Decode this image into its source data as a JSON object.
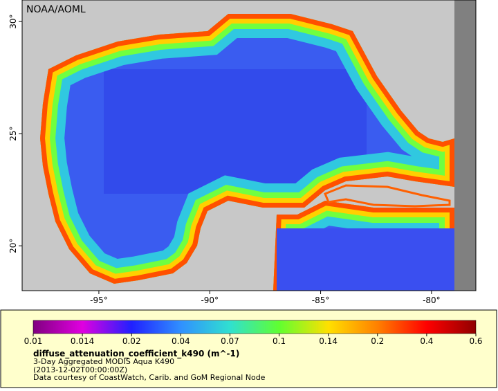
{
  "map": {
    "credit": "NOAA/AOML",
    "xlim": [
      -98.46,
      -78.0
    ],
    "ylim": [
      18.0,
      30.96
    ],
    "xticks": [
      {
        "value": -95,
        "label": "-95°"
      },
      {
        "value": -90,
        "label": "-90°"
      },
      {
        "value": -85,
        "label": "-85°"
      },
      {
        "value": -80,
        "label": "-80°"
      }
    ],
    "yticks": [
      {
        "value": 20,
        "label": "20°"
      },
      {
        "value": 25,
        "label": "25°"
      },
      {
        "value": 30,
        "label": "30°"
      }
    ]
  },
  "legend": {
    "colorbar": {
      "ticks": [
        {
          "value": 0.01,
          "label": "0.01"
        },
        {
          "value": 0.014,
          "label": "0.014"
        },
        {
          "value": 0.02,
          "label": "0.02"
        },
        {
          "value": 0.04,
          "label": "0.04"
        },
        {
          "value": 0.07,
          "label": "0.07"
        },
        {
          "value": 0.1,
          "label": "0.1"
        },
        {
          "value": 0.14,
          "label": "0.14"
        },
        {
          "value": 0.2,
          "label": "0.2"
        },
        {
          "value": 0.4,
          "label": "0.4"
        },
        {
          "value": 0.6,
          "label": "0.6"
        }
      ],
      "colors": [
        "#800080",
        "#e000e0",
        "#2020ff",
        "#3090ff",
        "#30e0d0",
        "#60ff30",
        "#ffe000",
        "#ff8000",
        "#ff0000",
        "#900000"
      ]
    },
    "variable": "diffuse_attenuation_coefficient_k490 (m^-1)",
    "description": "3-Day Aggregated MODIS Aqua K490",
    "time": "(2013-12-02T00:00:00Z)",
    "source": "Data courtesy of CoastWatch, Carib. and GoM Regional Node"
  }
}
